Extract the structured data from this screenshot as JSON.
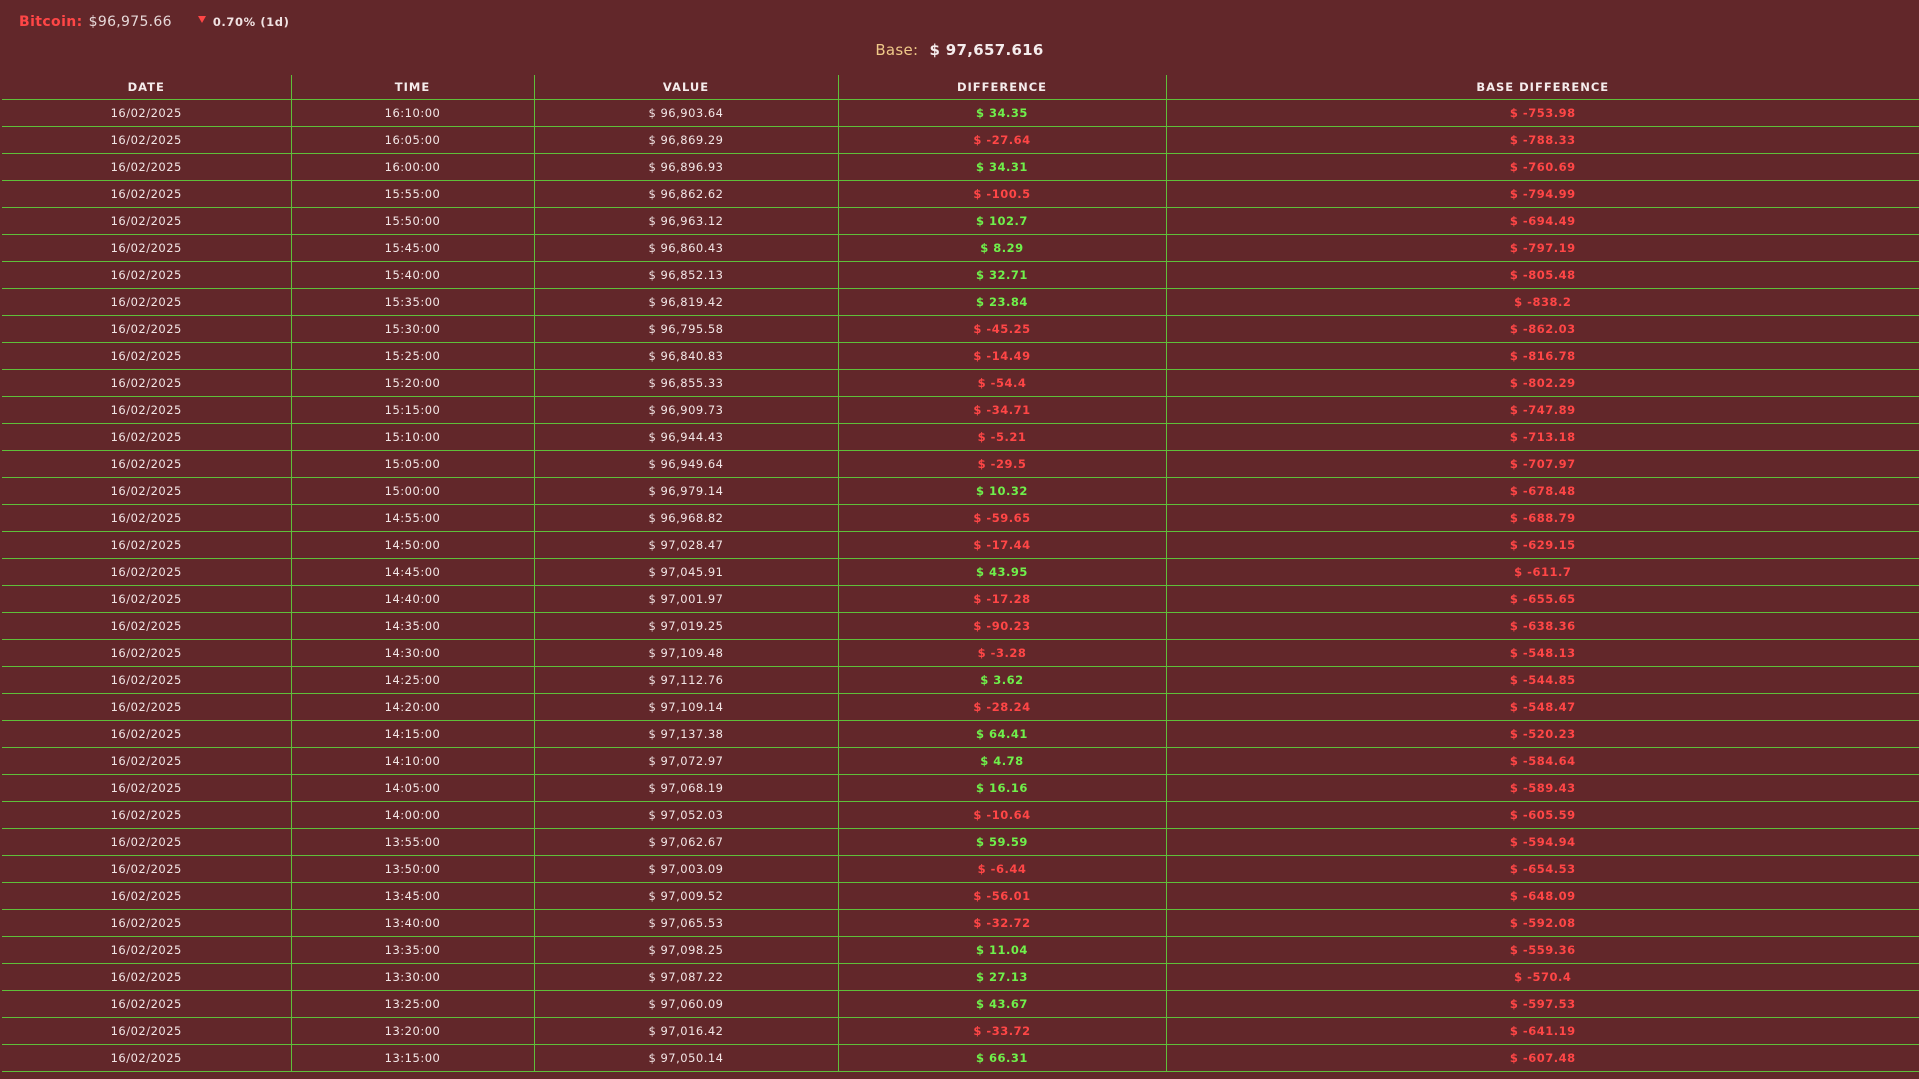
{
  "header": {
    "brand": "Bitcoin:",
    "price": "$96,975.66",
    "change": "0.70% (1d)",
    "change_direction": "down",
    "change_icon": "triangle-down-icon"
  },
  "base": {
    "label": "Base:",
    "value": "$ 97,657.616"
  },
  "colors": {
    "background": "#62272a",
    "grid": "#5fbf3a",
    "positive": "#6ff04b",
    "negative": "#ff4646",
    "base_label": "#f0c989"
  },
  "table": {
    "columns": [
      "DATE",
      "TIME",
      "VALUE",
      "DIFFERENCE",
      "BASE DIFFERENCE"
    ],
    "rows": [
      [
        "16/02/2025",
        "16:10:00",
        "$ 96,903.64",
        "$ 34.35",
        "$ -753.98"
      ],
      [
        "16/02/2025",
        "16:05:00",
        "$ 96,869.29",
        "$ -27.64",
        "$ -788.33"
      ],
      [
        "16/02/2025",
        "16:00:00",
        "$ 96,896.93",
        "$ 34.31",
        "$ -760.69"
      ],
      [
        "16/02/2025",
        "15:55:00",
        "$ 96,862.62",
        "$ -100.5",
        "$ -794.99"
      ],
      [
        "16/02/2025",
        "15:50:00",
        "$ 96,963.12",
        "$ 102.7",
        "$ -694.49"
      ],
      [
        "16/02/2025",
        "15:45:00",
        "$ 96,860.43",
        "$ 8.29",
        "$ -797.19"
      ],
      [
        "16/02/2025",
        "15:40:00",
        "$ 96,852.13",
        "$ 32.71",
        "$ -805.48"
      ],
      [
        "16/02/2025",
        "15:35:00",
        "$ 96,819.42",
        "$ 23.84",
        "$ -838.2"
      ],
      [
        "16/02/2025",
        "15:30:00",
        "$ 96,795.58",
        "$ -45.25",
        "$ -862.03"
      ],
      [
        "16/02/2025",
        "15:25:00",
        "$ 96,840.83",
        "$ -14.49",
        "$ -816.78"
      ],
      [
        "16/02/2025",
        "15:20:00",
        "$ 96,855.33",
        "$ -54.4",
        "$ -802.29"
      ],
      [
        "16/02/2025",
        "15:15:00",
        "$ 96,909.73",
        "$ -34.71",
        "$ -747.89"
      ],
      [
        "16/02/2025",
        "15:10:00",
        "$ 96,944.43",
        "$ -5.21",
        "$ -713.18"
      ],
      [
        "16/02/2025",
        "15:05:00",
        "$ 96,949.64",
        "$ -29.5",
        "$ -707.97"
      ],
      [
        "16/02/2025",
        "15:00:00",
        "$ 96,979.14",
        "$ 10.32",
        "$ -678.48"
      ],
      [
        "16/02/2025",
        "14:55:00",
        "$ 96,968.82",
        "$ -59.65",
        "$ -688.79"
      ],
      [
        "16/02/2025",
        "14:50:00",
        "$ 97,028.47",
        "$ -17.44",
        "$ -629.15"
      ],
      [
        "16/02/2025",
        "14:45:00",
        "$ 97,045.91",
        "$ 43.95",
        "$ -611.7"
      ],
      [
        "16/02/2025",
        "14:40:00",
        "$ 97,001.97",
        "$ -17.28",
        "$ -655.65"
      ],
      [
        "16/02/2025",
        "14:35:00",
        "$ 97,019.25",
        "$ -90.23",
        "$ -638.36"
      ],
      [
        "16/02/2025",
        "14:30:00",
        "$ 97,109.48",
        "$ -3.28",
        "$ -548.13"
      ],
      [
        "16/02/2025",
        "14:25:00",
        "$ 97,112.76",
        "$ 3.62",
        "$ -544.85"
      ],
      [
        "16/02/2025",
        "14:20:00",
        "$ 97,109.14",
        "$ -28.24",
        "$ -548.47"
      ],
      [
        "16/02/2025",
        "14:15:00",
        "$ 97,137.38",
        "$ 64.41",
        "$ -520.23"
      ],
      [
        "16/02/2025",
        "14:10:00",
        "$ 97,072.97",
        "$ 4.78",
        "$ -584.64"
      ],
      [
        "16/02/2025",
        "14:05:00",
        "$ 97,068.19",
        "$ 16.16",
        "$ -589.43"
      ],
      [
        "16/02/2025",
        "14:00:00",
        "$ 97,052.03",
        "$ -10.64",
        "$ -605.59"
      ],
      [
        "16/02/2025",
        "13:55:00",
        "$ 97,062.67",
        "$ 59.59",
        "$ -594.94"
      ],
      [
        "16/02/2025",
        "13:50:00",
        "$ 97,003.09",
        "$ -6.44",
        "$ -654.53"
      ],
      [
        "16/02/2025",
        "13:45:00",
        "$ 97,009.52",
        "$ -56.01",
        "$ -648.09"
      ],
      [
        "16/02/2025",
        "13:40:00",
        "$ 97,065.53",
        "$ -32.72",
        "$ -592.08"
      ],
      [
        "16/02/2025",
        "13:35:00",
        "$ 97,098.25",
        "$ 11.04",
        "$ -559.36"
      ],
      [
        "16/02/2025",
        "13:30:00",
        "$ 97,087.22",
        "$ 27.13",
        "$ -570.4"
      ],
      [
        "16/02/2025",
        "13:25:00",
        "$ 97,060.09",
        "$ 43.67",
        "$ -597.53"
      ],
      [
        "16/02/2025",
        "13:20:00",
        "$ 97,016.42",
        "$ -33.72",
        "$ -641.19"
      ],
      [
        "16/02/2025",
        "13:15:00",
        "$ 97,050.14",
        "$ 66.31",
        "$ -607.48"
      ]
    ]
  }
}
